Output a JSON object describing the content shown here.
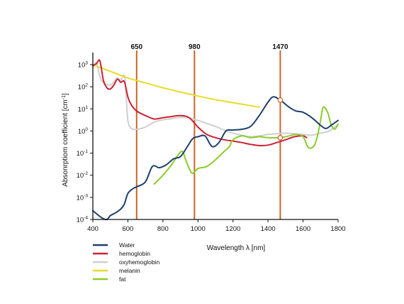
{
  "chart_data": {
    "type": "line",
    "xlabel": "Wavelength λ [nm]",
    "ylabel": "Absorption coefficient [cm⁻¹]",
    "ylabel_display": "Absonrptiom coefficient [cm",
    "ylabel_superscript": "-1",
    "ylabel_close": "]",
    "xlim": [
      400,
      1800
    ],
    "ylim": [
      0.0001,
      1000
    ],
    "yscale": "log",
    "x_ticks": [
      {
        "label": "400",
        "value": 400
      },
      {
        "label": "600",
        "value": 600
      },
      {
        "label": "800",
        "value": 800
      },
      {
        "label": "1000",
        "value": 1000
      },
      {
        "label": "1200",
        "value": 1200
      },
      {
        "label": "1400",
        "value": 1400
      },
      {
        "label": "1600",
        "value": 1600
      },
      {
        "label": "1800",
        "value": 1800
      }
    ],
    "y_ticks": [
      {
        "base": "10",
        "exp": "3",
        "value": 1000
      },
      {
        "base": "10",
        "exp": "2",
        "value": 100
      },
      {
        "base": "10",
        "exp": "1",
        "value": 10
      },
      {
        "base": "10",
        "exp": "0",
        "value": 1
      },
      {
        "base": "10",
        "exp": "-1",
        "value": 0.1
      },
      {
        "base": "10",
        "exp": "-2",
        "value": 0.01
      },
      {
        "base": "10",
        "exp": "-3",
        "value": 0.001
      },
      {
        "base": "10",
        "exp": "-4",
        "value": 0.0001
      }
    ],
    "vertical_lines": [
      {
        "label": "650",
        "x": 650,
        "color": "#c8642a"
      },
      {
        "label": "980",
        "x": 980,
        "color": "#c8642a"
      },
      {
        "label": "1470",
        "x": 1470,
        "color": "#c8642a"
      }
    ],
    "markers": [
      {
        "x": 1470,
        "y": 25,
        "series": "Water"
      },
      {
        "x": 1470,
        "y": 0.5,
        "series": "fat"
      }
    ],
    "legend_position": "bottom-left",
    "series": [
      {
        "name": "Water",
        "color": "#1f3f6e",
        "points": [
          [
            400,
            0.00025
          ],
          [
            450,
            0.00012
          ],
          [
            480,
            0.0001
          ],
          [
            500,
            0.00015
          ],
          [
            530,
            0.0002
          ],
          [
            560,
            0.0003
          ],
          [
            580,
            0.0005
          ],
          [
            600,
            0.0015
          ],
          [
            630,
            0.0025
          ],
          [
            650,
            0.003
          ],
          [
            700,
            0.005
          ],
          [
            740,
            0.025
          ],
          [
            780,
            0.022
          ],
          [
            820,
            0.03
          ],
          [
            860,
            0.055
          ],
          [
            900,
            0.07
          ],
          [
            940,
            0.2
          ],
          [
            970,
            0.45
          ],
          [
            1000,
            0.55
          ],
          [
            1040,
            0.6
          ],
          [
            1080,
            0.2
          ],
          [
            1120,
            0.3
          ],
          [
            1160,
            1.0
          ],
          [
            1200,
            1.1
          ],
          [
            1250,
            1.2
          ],
          [
            1300,
            1.6
          ],
          [
            1350,
            5
          ],
          [
            1400,
            20
          ],
          [
            1430,
            35
          ],
          [
            1470,
            25
          ],
          [
            1520,
            12
          ],
          [
            1560,
            8
          ],
          [
            1600,
            7
          ],
          [
            1650,
            4
          ],
          [
            1700,
            1.8
          ],
          [
            1730,
            1.3
          ],
          [
            1760,
            1.8
          ],
          [
            1800,
            3
          ]
        ]
      },
      {
        "name": "hemoglobin",
        "color": "#cc2233",
        "points": [
          [
            400,
            900
          ],
          [
            420,
            1100
          ],
          [
            440,
            1500
          ],
          [
            460,
            200
          ],
          [
            480,
            90
          ],
          [
            500,
            80
          ],
          [
            520,
            120
          ],
          [
            540,
            220
          ],
          [
            560,
            160
          ],
          [
            580,
            170
          ],
          [
            600,
            35
          ],
          [
            620,
            15
          ],
          [
            650,
            8
          ],
          [
            700,
            5
          ],
          [
            750,
            3.5
          ],
          [
            800,
            4
          ],
          [
            850,
            4.5
          ],
          [
            900,
            5
          ],
          [
            950,
            4
          ],
          [
            1000,
            1.5
          ],
          [
            1050,
            0.7
          ],
          [
            1100,
            0.5
          ],
          [
            1150,
            0.4
          ],
          [
            1200,
            0.35
          ],
          [
            1250,
            0.3
          ],
          [
            1300,
            0.25
          ],
          [
            1350,
            0.22
          ],
          [
            1400,
            0.23
          ],
          [
            1450,
            0.3
          ],
          [
            1500,
            0.4
          ],
          [
            1550,
            0.55
          ],
          [
            1600,
            0.6
          ],
          [
            1620,
            0.5
          ]
        ]
      },
      {
        "name": "oxyhemoglobin",
        "color": "#cfcfcf",
        "points": [
          [
            400,
            700
          ],
          [
            420,
            1200
          ],
          [
            440,
            300
          ],
          [
            460,
            150
          ],
          [
            500,
            120
          ],
          [
            520,
            170
          ],
          [
            540,
            250
          ],
          [
            560,
            200
          ],
          [
            580,
            320
          ],
          [
            590,
            40
          ],
          [
            600,
            3
          ],
          [
            620,
            1.3
          ],
          [
            650,
            1.2
          ],
          [
            700,
            1.5
          ],
          [
            750,
            2.5
          ],
          [
            800,
            3.2
          ],
          [
            850,
            3.6
          ],
          [
            900,
            4.1
          ],
          [
            950,
            3.8
          ],
          [
            1000,
            3
          ],
          [
            1050,
            2.2
          ],
          [
            1100,
            1.6
          ],
          [
            1150,
            1.1
          ],
          [
            1200,
            0.8
          ],
          [
            1250,
            0.65
          ],
          [
            1300,
            0.55
          ],
          [
            1350,
            0.6
          ],
          [
            1400,
            0.7
          ],
          [
            1450,
            0.75
          ],
          [
            1500,
            0.8
          ],
          [
            1550,
            0.75
          ],
          [
            1600,
            0.7
          ],
          [
            1650,
            0.65
          ],
          [
            1700,
            0.8
          ],
          [
            1750,
            1.0
          ],
          [
            1800,
            2
          ]
        ]
      },
      {
        "name": "melanin",
        "color": "#e8dc2a",
        "points": [
          [
            400,
            1000
          ],
          [
            500,
            500
          ],
          [
            600,
            250
          ],
          [
            700,
            150
          ],
          [
            800,
            90
          ],
          [
            900,
            58
          ],
          [
            1000,
            38
          ],
          [
            1100,
            26
          ],
          [
            1200,
            19
          ],
          [
            1300,
            14
          ],
          [
            1350,
            12
          ]
        ]
      },
      {
        "name": "fat",
        "color": "#8ccc2a",
        "points": [
          [
            750,
            0.004
          ],
          [
            800,
            0.01
          ],
          [
            850,
            0.03
          ],
          [
            880,
            0.07
          ],
          [
            910,
            0.12
          ],
          [
            930,
            0.05
          ],
          [
            950,
            0.02
          ],
          [
            970,
            0.012
          ],
          [
            1000,
            0.02
          ],
          [
            1050,
            0.025
          ],
          [
            1100,
            0.05
          ],
          [
            1150,
            0.12
          ],
          [
            1180,
            0.2
          ],
          [
            1200,
            0.4
          ],
          [
            1250,
            0.6
          ],
          [
            1300,
            0.5
          ],
          [
            1350,
            0.55
          ],
          [
            1400,
            0.5
          ],
          [
            1470,
            0.5
          ],
          [
            1520,
            0.6
          ],
          [
            1560,
            0.7
          ],
          [
            1600,
            0.55
          ],
          [
            1630,
            0.18
          ],
          [
            1660,
            0.2
          ],
          [
            1680,
            0.5
          ],
          [
            1700,
            3
          ],
          [
            1715,
            12
          ],
          [
            1740,
            7
          ],
          [
            1760,
            2
          ],
          [
            1780,
            1.2
          ],
          [
            1800,
            2
          ]
        ]
      }
    ]
  }
}
